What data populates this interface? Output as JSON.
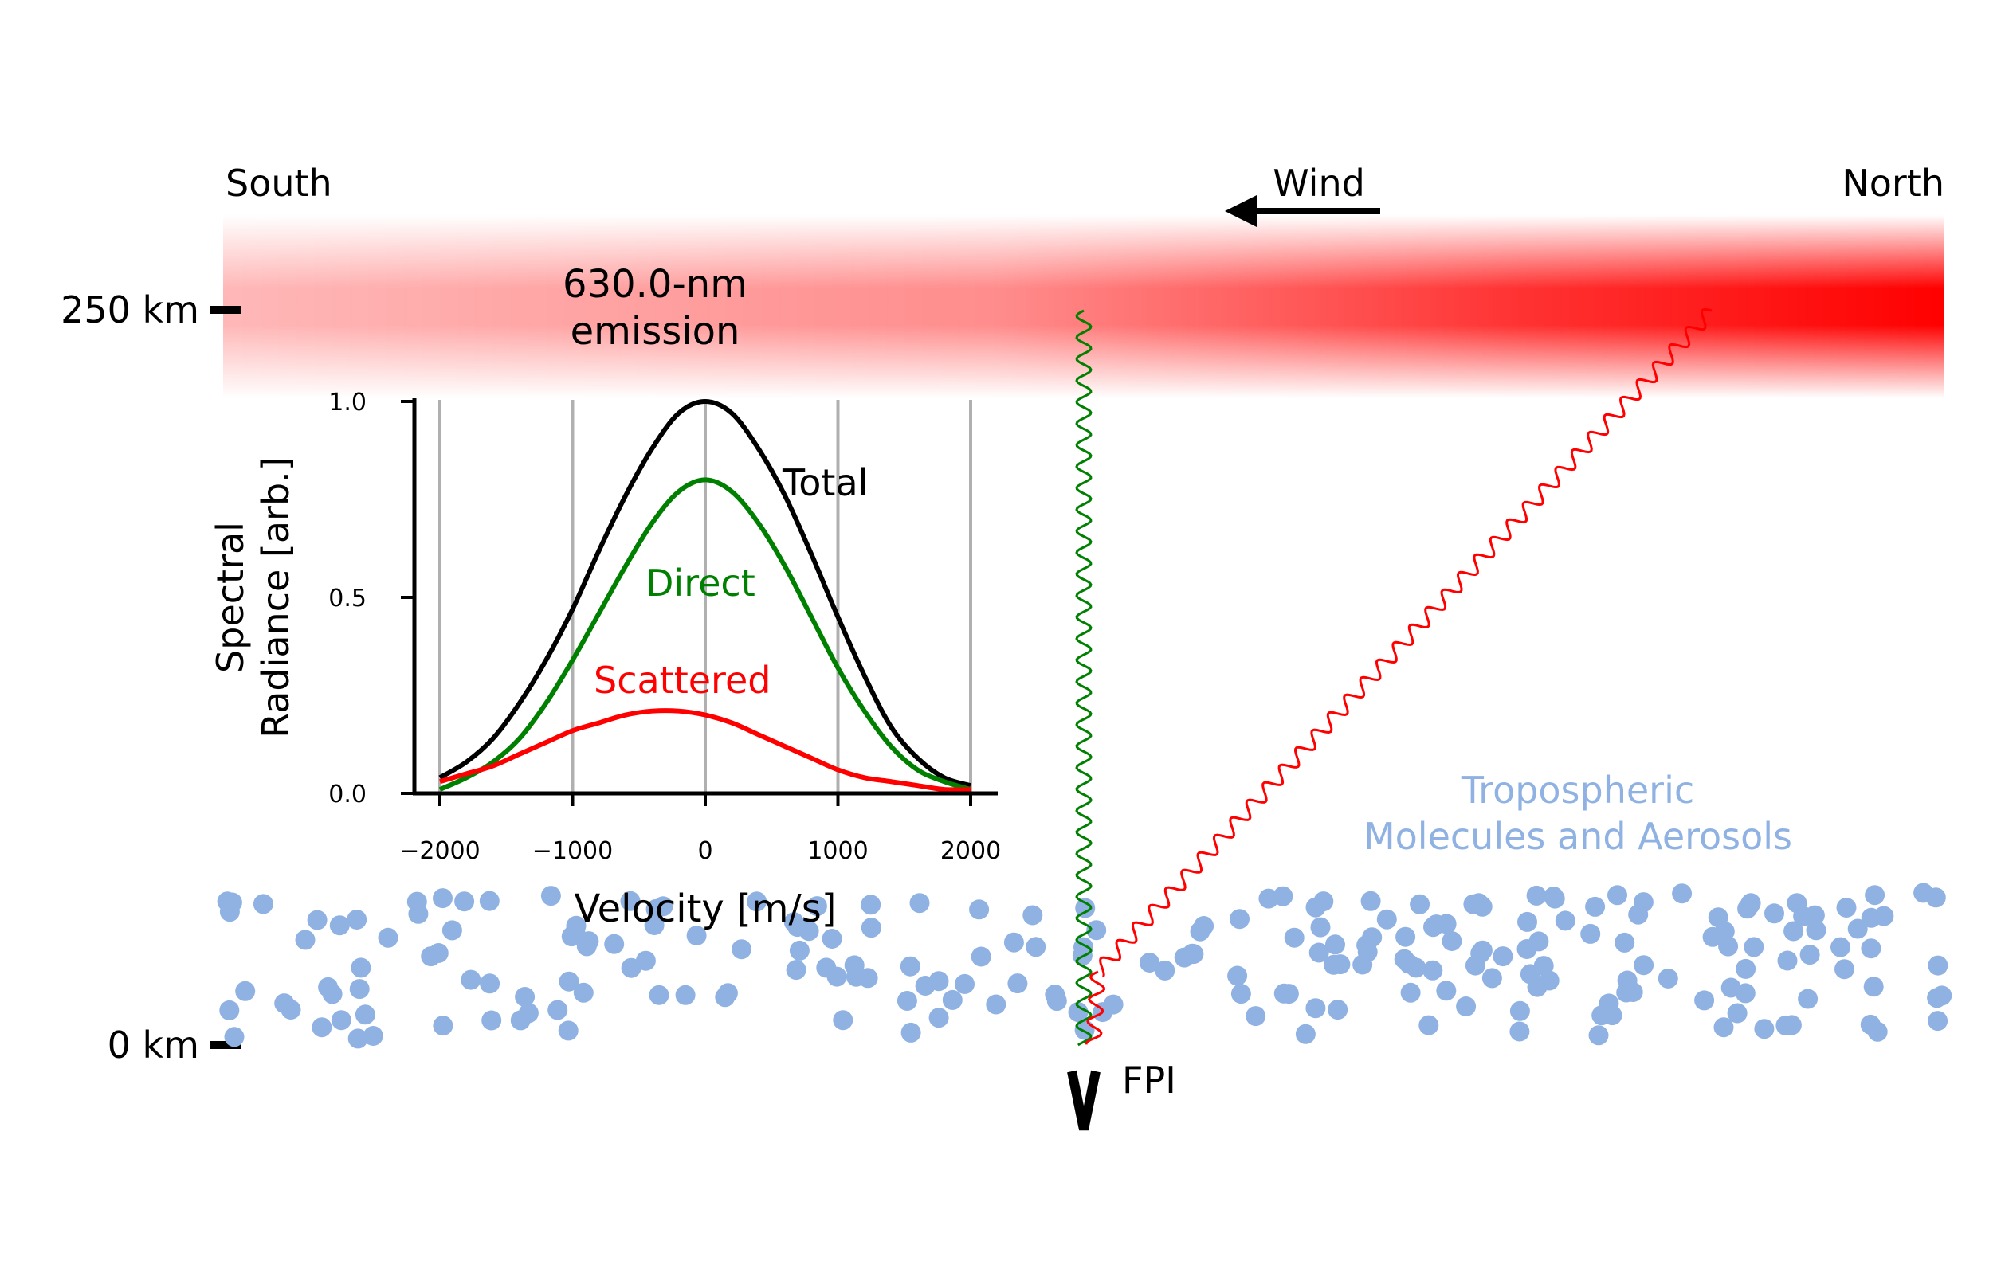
{
  "labels": {
    "south": "South",
    "north": "North",
    "wind": "Wind",
    "emission_line1": "630.0-nm",
    "emission_line2": "emission",
    "alt_top": "250 km",
    "alt_bottom": "0 km",
    "instrument": "FPI",
    "tropo_line1": "Tropospheric",
    "tropo_line2": "Molecules and Aerosols"
  },
  "colors": {
    "emission": "#ff0000",
    "direct": "#008000",
    "scattered": "#ff0000",
    "total": "#000000",
    "particles": "#8fb2e3",
    "grid": "#b0b0b0"
  },
  "chart_data": {
    "type": "line",
    "xlabel": "Velocity [m/s]",
    "ylabel_line1": "Spectral",
    "ylabel_line2": "Radiance [arb.]",
    "xlim": [
      -2200,
      2200
    ],
    "ylim": [
      0,
      1.0
    ],
    "x_ticks": [
      -2000,
      -1000,
      0,
      1000,
      2000
    ],
    "x_tick_labels": [
      "−2000",
      "−1000",
      "0",
      "1000",
      "2000"
    ],
    "y_ticks": [
      0.0,
      0.5,
      1.0
    ],
    "y_tick_labels": [
      "0.0",
      "0.5",
      "1.0"
    ],
    "grid": "vertical",
    "series": [
      {
        "name": "Total",
        "color": "#000000",
        "x": [
          -2000,
          -1800,
          -1600,
          -1400,
          -1200,
          -1000,
          -800,
          -600,
          -400,
          -200,
          0,
          200,
          400,
          600,
          800,
          1000,
          1200,
          1400,
          1600,
          1800,
          2000
        ],
        "y": [
          0.04,
          0.08,
          0.14,
          0.23,
          0.34,
          0.47,
          0.62,
          0.76,
          0.88,
          0.97,
          1.0,
          0.97,
          0.88,
          0.76,
          0.61,
          0.45,
          0.3,
          0.17,
          0.09,
          0.04,
          0.02
        ]
      },
      {
        "name": "Direct",
        "color": "#008000",
        "x": [
          -2000,
          -1800,
          -1600,
          -1400,
          -1200,
          -1000,
          -800,
          -600,
          -400,
          -200,
          0,
          200,
          400,
          600,
          800,
          1000,
          1200,
          1400,
          1600,
          1800,
          2000
        ],
        "y": [
          0.01,
          0.04,
          0.08,
          0.14,
          0.23,
          0.34,
          0.46,
          0.58,
          0.69,
          0.77,
          0.8,
          0.77,
          0.69,
          0.58,
          0.45,
          0.32,
          0.21,
          0.12,
          0.06,
          0.03,
          0.01
        ]
      },
      {
        "name": "Scattered",
        "color": "#ff0000",
        "x": [
          -2000,
          -1800,
          -1600,
          -1400,
          -1200,
          -1000,
          -800,
          -600,
          -400,
          -200,
          0,
          200,
          400,
          600,
          800,
          1000,
          1200,
          1400,
          1600,
          1800,
          2000
        ],
        "y": [
          0.03,
          0.05,
          0.07,
          0.1,
          0.13,
          0.16,
          0.18,
          0.2,
          0.21,
          0.21,
          0.2,
          0.18,
          0.15,
          0.12,
          0.09,
          0.06,
          0.04,
          0.03,
          0.02,
          0.01,
          0.01
        ]
      }
    ]
  }
}
